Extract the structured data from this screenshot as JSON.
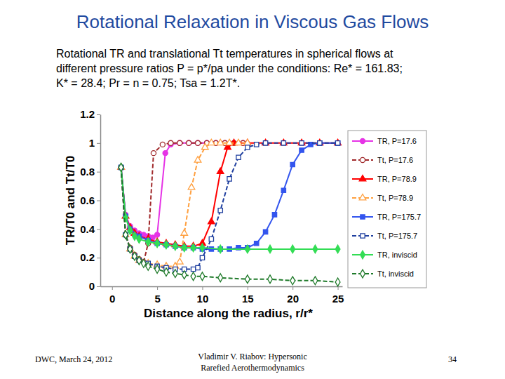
{
  "chart_data": {
    "type": "line",
    "title": "Rotational Relaxation in Viscous Gas Flows",
    "subtitle": [
      "Rotational TR and translational Tt temperatures in spherical flows at",
      "different pressure ratios P = p*/pa under the conditions: Re* = 161.83;",
      "K* = 28.4; Pr = n = 0.75; Tsa = 1.2T*."
    ],
    "x_label": "Distance along the radius, r/r*",
    "y_label": "TR/T0 and Tt/T0",
    "xlim": [
      -1.3,
      25.5
    ],
    "xticks": [
      0,
      5,
      10,
      15,
      20,
      25
    ],
    "ylim": [
      0,
      1.2
    ],
    "yticks": [
      0,
      0.2,
      0.4,
      0.6,
      0.8,
      1,
      1.2
    ],
    "grid": false,
    "legend": "right",
    "series": [
      {
        "name": "TR, P=17.6",
        "color": "#e633e6",
        "marker": "circle",
        "line_style": "solid",
        "x": [
          1,
          1.5,
          2,
          2.5,
          3,
          3.5,
          4,
          4.5,
          5,
          5.9,
          6.5,
          7.5,
          8.5,
          9.5,
          10.5,
          11.5,
          12.5,
          13.5,
          14.5
        ],
        "values": [
          0.83,
          0.5,
          0.42,
          0.39,
          0.37,
          0.36,
          0.35,
          0.34,
          0.36,
          0.93,
          0.99,
          1,
          1,
          1,
          1,
          1,
          1,
          1,
          1
        ]
      },
      {
        "name": "Tt, P=17.6",
        "color": "#a0282a",
        "marker": "circle-open",
        "line_style": "dashed",
        "x": [
          1,
          1.5,
          2,
          2.5,
          3,
          3.5,
          4,
          4.6,
          5.6,
          6.5,
          7.5,
          8.5,
          9.5,
          10.5,
          11.5,
          12.5,
          13.5,
          14.5
        ],
        "values": [
          0.83,
          0.36,
          0.27,
          0.22,
          0.19,
          0.17,
          0.3,
          0.93,
          0.99,
          1,
          1,
          1,
          1,
          1,
          1,
          1,
          1,
          1
        ]
      },
      {
        "name": "TR, P=78.9",
        "color": "#ff0000",
        "marker": "triangle",
        "line_style": "solid",
        "x": [
          1,
          1.5,
          2,
          2.5,
          3,
          4,
          5,
          6,
          7,
          8,
          9,
          10,
          11,
          12,
          12.8,
          13.5,
          15,
          17,
          19,
          21,
          23,
          25
        ],
        "values": [
          0.83,
          0.49,
          0.41,
          0.37,
          0.35,
          0.33,
          0.31,
          0.3,
          0.29,
          0.28,
          0.28,
          0.3,
          0.45,
          0.8,
          0.97,
          1,
          1,
          1,
          1,
          1,
          1,
          1
        ]
      },
      {
        "name": "Tt, P=78.9",
        "color": "#ffa040",
        "marker": "triangle-open",
        "line_style": "dashed",
        "x": [
          1,
          1.5,
          2,
          2.5,
          3,
          4,
          5,
          6,
          7,
          7.5,
          8,
          8.8,
          9.5,
          10.3,
          11,
          12,
          13,
          14,
          15
        ],
        "values": [
          0.83,
          0.36,
          0.26,
          0.21,
          0.18,
          0.16,
          0.15,
          0.14,
          0.14,
          0.17,
          0.37,
          0.69,
          0.88,
          0.97,
          1,
          1,
          1,
          1,
          1
        ]
      },
      {
        "name": "TR, P=175.7",
        "color": "#3355ee",
        "marker": "square",
        "line_style": "solid",
        "x": [
          1,
          1.5,
          2,
          3,
          4,
          5,
          6,
          7,
          8,
          9,
          10,
          11,
          12,
          13,
          14,
          15,
          16,
          17,
          18,
          19,
          20,
          21,
          22,
          23,
          25
        ],
        "values": [
          0.83,
          0.49,
          0.4,
          0.35,
          0.32,
          0.3,
          0.29,
          0.28,
          0.27,
          0.27,
          0.26,
          0.26,
          0.26,
          0.26,
          0.27,
          0.27,
          0.3,
          0.38,
          0.5,
          0.67,
          0.85,
          0.95,
          0.99,
          1,
          1
        ]
      },
      {
        "name": "Tt, P=175.7",
        "color": "#1f3f9f",
        "marker": "square-open",
        "line_style": "dashed",
        "x": [
          1,
          1.5,
          2,
          2.5,
          3,
          4,
          5,
          6,
          7,
          8,
          9,
          9.5,
          10,
          11,
          12,
          13,
          14,
          15,
          16,
          17,
          19,
          21,
          23,
          25
        ],
        "values": [
          0.83,
          0.36,
          0.26,
          0.21,
          0.18,
          0.16,
          0.14,
          0.13,
          0.12,
          0.12,
          0.12,
          0.13,
          0.2,
          0.33,
          0.53,
          0.75,
          0.9,
          0.97,
          0.99,
          1,
          1,
          1,
          1,
          1
        ]
      },
      {
        "name": "TR, inviscid",
        "color": "#33dd55",
        "marker": "diamond",
        "line_style": "solid",
        "x": [
          1,
          1.5,
          2,
          2.5,
          3,
          4,
          5,
          6,
          7,
          8,
          9,
          10,
          12,
          15,
          17.5,
          20,
          22.5,
          25
        ],
        "values": [
          0.83,
          0.48,
          0.39,
          0.35,
          0.33,
          0.31,
          0.3,
          0.29,
          0.28,
          0.27,
          0.27,
          0.27,
          0.26,
          0.26,
          0.26,
          0.26,
          0.26,
          0.26
        ]
      },
      {
        "name": "Tt, inviscid",
        "color": "#1f7a2a",
        "marker": "diamond-open",
        "line_style": "dashed",
        "x": [
          1,
          1.5,
          2,
          2.5,
          3,
          3.5,
          4,
          5,
          6,
          7,
          8,
          9,
          10,
          12,
          15,
          17.5,
          20,
          22.5,
          25
        ],
        "values": [
          0.83,
          0.36,
          0.26,
          0.21,
          0.18,
          0.16,
          0.14,
          0.12,
          0.1,
          0.09,
          0.08,
          0.07,
          0.07,
          0.06,
          0.05,
          0.05,
          0.04,
          0.04,
          0.03
        ]
      }
    ]
  },
  "footer": {
    "left": "DWC, March 24, 2012",
    "center": [
      "Vladimir V. Riabov: Hypersonic",
      "Rarefied Aerothermodynamics"
    ],
    "right": "34"
  }
}
